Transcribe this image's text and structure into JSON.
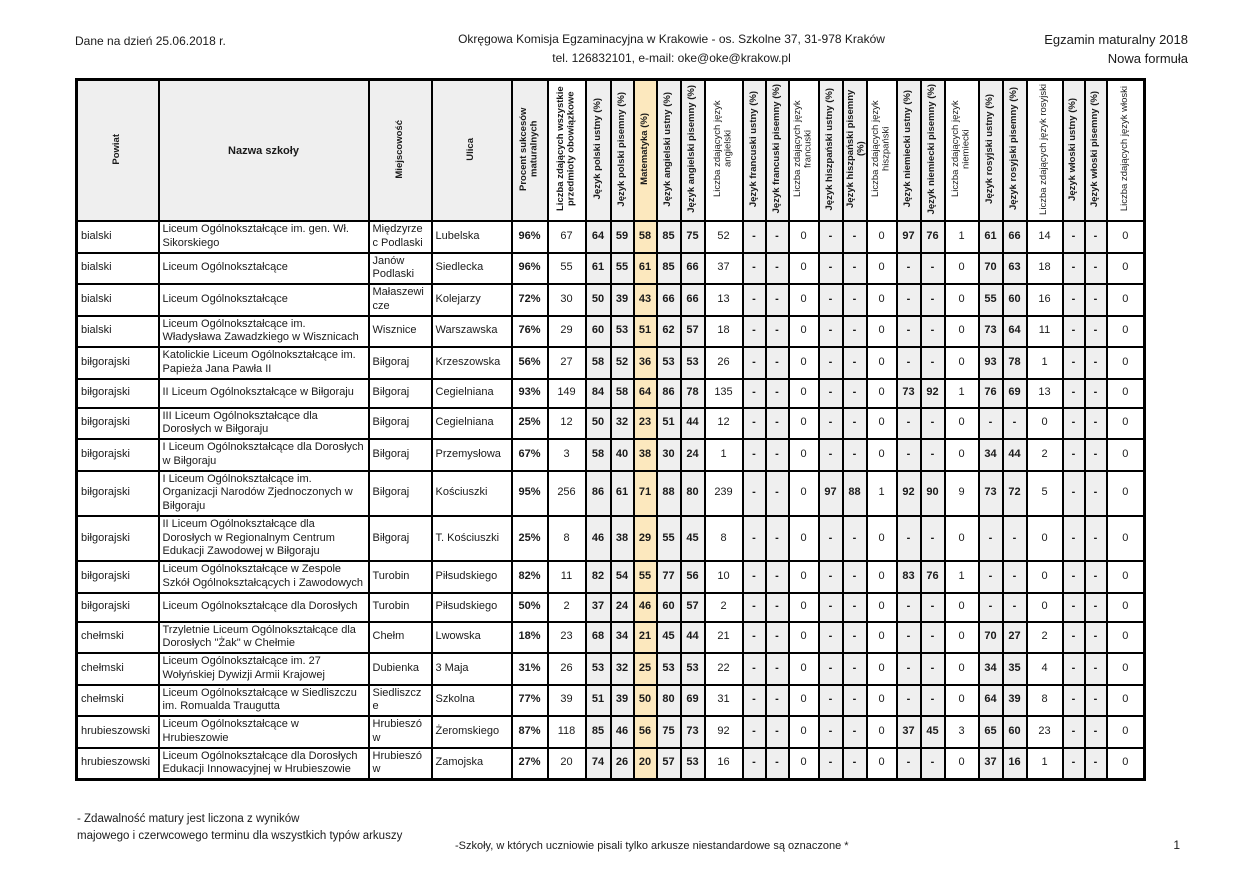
{
  "header": {
    "date_note": "Dane na dzień 25.06.2018 r.",
    "org_line1": "Okręgowa Komisja Egzaminacyjna w Krakowie - os. Szkolne 37, 31-978 Kraków",
    "org_line2": "tel. 126832101, e-mail: oke@oke@krakow.pl",
    "exam_line1": "Egzamin maturalny 2018",
    "exam_line2": "Nowa formuła"
  },
  "colors": {
    "shaded": "#efefef",
    "math_highlight": "#fce8be"
  },
  "table": {
    "columns": [
      {
        "key": "powiat",
        "label": "Powiat",
        "style": "text"
      },
      {
        "key": "nazwa_szkoly",
        "label": "Nazwa szkoły",
        "style": "text"
      },
      {
        "key": "miejscowosc",
        "label": "Miejscowość",
        "style": "text"
      },
      {
        "key": "ulica",
        "label": "Ulica",
        "style": "text"
      },
      {
        "key": "procent_sukcesow",
        "label": "Procent sukcesów maturalnych",
        "style": "pct"
      },
      {
        "key": "liczba_wszystkie",
        "label": "Liczba zdających wszystkie przedmioty obowiązkowe",
        "style": "num",
        "bold_header": true
      },
      {
        "key": "polski_ustny",
        "label": "Język polski ustny (%)",
        "style": "lang"
      },
      {
        "key": "polski_pisemny",
        "label": "Język polski pisemny (%)",
        "style": "lang"
      },
      {
        "key": "matematyka",
        "label": "Matematyka (%)",
        "style": "math"
      },
      {
        "key": "angielski_ustny",
        "label": "Język angielski ustny (%)",
        "style": "lang"
      },
      {
        "key": "angielski_pisemny",
        "label": "Język angielski pisemny (%)",
        "style": "lang"
      },
      {
        "key": "liczba_angielski",
        "label": "Liczba zdających język angielski",
        "style": "num"
      },
      {
        "key": "francuski_ustny",
        "label": "Język francuski ustny (%)",
        "style": "lang"
      },
      {
        "key": "francuski_pisemny",
        "label": "Język francuski pisemny (%)",
        "style": "lang"
      },
      {
        "key": "liczba_francuski",
        "label": "Liczba zdających język francuski",
        "style": "num"
      },
      {
        "key": "hiszpanski_ustny",
        "label": "Język hiszpański ustny (%)",
        "style": "lang"
      },
      {
        "key": "hiszpanski_pisemny",
        "label": "Język hiszpański pisemny (%)",
        "style": "lang"
      },
      {
        "key": "liczba_hiszpanski",
        "label": "Liczba zdających język hiszpański",
        "style": "num"
      },
      {
        "key": "niemiecki_ustny",
        "label": "Język niemiecki ustny (%)",
        "style": "lang"
      },
      {
        "key": "niemiecki_pisemny",
        "label": "Język niemiecki pisemny (%)",
        "style": "lang"
      },
      {
        "key": "liczba_niemiecki",
        "label": "Liczba zdających język niemiecki",
        "style": "num"
      },
      {
        "key": "rosyjski_ustny",
        "label": "Język rosyjski ustny (%)",
        "style": "lang"
      },
      {
        "key": "rosyjski_pisemny",
        "label": "Język rosyjski pisemny (%)",
        "style": "lang"
      },
      {
        "key": "liczba_rosyjski",
        "label": "Liczba zdających język rosyjski",
        "style": "num"
      },
      {
        "key": "wloski_ustny",
        "label": "Język włoski ustny (%)",
        "style": "lang"
      },
      {
        "key": "wloski_pisemny",
        "label": "Język włoski pisemny (%)",
        "style": "lang"
      },
      {
        "key": "liczba_wloski",
        "label": "Liczba zdających język włoski",
        "style": "num"
      }
    ],
    "rows": [
      [
        "bialski",
        "Liceum Ogólnokształcące im. gen. Wł. Sikorskiego",
        "Międzyrzec Podlaski",
        "Lubelska",
        "96%",
        "67",
        "64",
        "59",
        "58",
        "85",
        "75",
        "52",
        "-",
        "-",
        "0",
        "-",
        "-",
        "0",
        "97",
        "76",
        "1",
        "61",
        "66",
        "14",
        "-",
        "-",
        "0"
      ],
      [
        "bialski",
        "Liceum Ogólnokształcące",
        "Janów Podlaski",
        "Siedlecka",
        "96%",
        "55",
        "61",
        "55",
        "61",
        "85",
        "66",
        "37",
        "-",
        "-",
        "0",
        "-",
        "-",
        "0",
        "-",
        "-",
        "0",
        "70",
        "63",
        "18",
        "-",
        "-",
        "0"
      ],
      [
        "bialski",
        "Liceum Ogólnokształcące",
        "Małaszewicze",
        "Kolejarzy",
        "72%",
        "30",
        "50",
        "39",
        "43",
        "66",
        "66",
        "13",
        "-",
        "-",
        "0",
        "-",
        "-",
        "0",
        "-",
        "-",
        "0",
        "55",
        "60",
        "16",
        "-",
        "-",
        "0"
      ],
      [
        "bialski",
        "Liceum Ogólnokształcące im. Władysława Zawadzkiego w Wisznicach",
        "Wisznice",
        "Warszawska",
        "76%",
        "29",
        "60",
        "53",
        "51",
        "62",
        "57",
        "18",
        "-",
        "-",
        "0",
        "-",
        "-",
        "0",
        "-",
        "-",
        "0",
        "73",
        "64",
        "11",
        "-",
        "-",
        "0"
      ],
      [
        "biłgorajski",
        "Katolickie Liceum Ogólnokształcące im. Papieża Jana Pawła II",
        "Biłgoraj",
        "Krzeszowska",
        "56%",
        "27",
        "58",
        "52",
        "36",
        "53",
        "53",
        "26",
        "-",
        "-",
        "0",
        "-",
        "-",
        "0",
        "-",
        "-",
        "0",
        "93",
        "78",
        "1",
        "-",
        "-",
        "0"
      ],
      [
        "biłgorajski",
        "II Liceum Ogólnokształcące w Biłgoraju",
        "Biłgoraj",
        "Cegielniana",
        "93%",
        "149",
        "84",
        "58",
        "64",
        "86",
        "78",
        "135",
        "-",
        "-",
        "0",
        "-",
        "-",
        "0",
        "73",
        "92",
        "1",
        "76",
        "69",
        "13",
        "-",
        "-",
        "0"
      ],
      [
        "biłgorajski",
        "III Liceum Ogólnokształcące dla Dorosłych w Biłgoraju",
        "Biłgoraj",
        "Cegielniana",
        "25%",
        "12",
        "50",
        "32",
        "23",
        "51",
        "44",
        "12",
        "-",
        "-",
        "0",
        "-",
        "-",
        "0",
        "-",
        "-",
        "0",
        "-",
        "-",
        "0",
        "-",
        "-",
        "0"
      ],
      [
        "biłgorajski",
        "I Liceum Ogólnokształcące dla Dorosłych w Biłgoraju",
        "Biłgoraj",
        "Przemysłowa",
        "67%",
        "3",
        "58",
        "40",
        "38",
        "30",
        "24",
        "1",
        "-",
        "-",
        "0",
        "-",
        "-",
        "0",
        "-",
        "-",
        "0",
        "34",
        "44",
        "2",
        "-",
        "-",
        "0"
      ],
      [
        "biłgorajski",
        "I Liceum Ogólnokształcące im. Organizacji Narodów Zjednoczonych w Biłgoraju",
        "Biłgoraj",
        "Kościuszki",
        "95%",
        "256",
        "86",
        "61",
        "71",
        "88",
        "80",
        "239",
        "-",
        "-",
        "0",
        "97",
        "88",
        "1",
        "92",
        "90",
        "9",
        "73",
        "72",
        "5",
        "-",
        "-",
        "0"
      ],
      [
        "biłgorajski",
        "II Liceum Ogólnokształcące dla Dorosłych w Regionalnym Centrum Edukacji Zawodowej w Biłgoraju",
        "Biłgoraj",
        "T. Kościuszki",
        "25%",
        "8",
        "46",
        "38",
        "29",
        "55",
        "45",
        "8",
        "-",
        "-",
        "0",
        "-",
        "-",
        "0",
        "-",
        "-",
        "0",
        "-",
        "-",
        "0",
        "-",
        "-",
        "0"
      ],
      [
        "biłgorajski",
        "Liceum Ogólnokształcące w Zespole Szkół Ogólnokształcących i Zawodowych",
        "Turobin",
        "Piłsudskiego",
        "82%",
        "11",
        "82",
        "54",
        "55",
        "77",
        "56",
        "10",
        "-",
        "-",
        "0",
        "-",
        "-",
        "0",
        "83",
        "76",
        "1",
        "-",
        "-",
        "0",
        "-",
        "-",
        "0"
      ],
      [
        "biłgorajski",
        "Liceum Ogólnokształcące dla Dorosłych",
        "Turobin",
        "Piłsudskiego",
        "50%",
        "2",
        "37",
        "24",
        "46",
        "60",
        "57",
        "2",
        "-",
        "-",
        "0",
        "-",
        "-",
        "0",
        "-",
        "-",
        "0",
        "-",
        "-",
        "0",
        "-",
        "-",
        "0"
      ],
      [
        "chełmski",
        "Trzyletnie Liceum Ogólnokształcące dla Dorosłych \"Żak\" w Chełmie",
        "Chełm",
        "Lwowska",
        "18%",
        "23",
        "68",
        "34",
        "21",
        "45",
        "44",
        "21",
        "-",
        "-",
        "0",
        "-",
        "-",
        "0",
        "-",
        "-",
        "0",
        "70",
        "27",
        "2",
        "-",
        "-",
        "0"
      ],
      [
        "chełmski",
        "Liceum Ogólnokształcące im. 27 Wołyńskiej Dywizji Armii Krajowej",
        "Dubienka",
        "3 Maja",
        "31%",
        "26",
        "53",
        "32",
        "25",
        "53",
        "53",
        "22",
        "-",
        "-",
        "0",
        "-",
        "-",
        "0",
        "-",
        "-",
        "0",
        "34",
        "35",
        "4",
        "-",
        "-",
        "0"
      ],
      [
        "chełmski",
        "Liceum Ogólnokształcące w Siedliszczu im. Romualda Traugutta",
        "Siedliszcze",
        "Szkolna",
        "77%",
        "39",
        "51",
        "39",
        "50",
        "80",
        "69",
        "31",
        "-",
        "-",
        "0",
        "-",
        "-",
        "0",
        "-",
        "-",
        "0",
        "64",
        "39",
        "8",
        "-",
        "-",
        "0"
      ],
      [
        "hrubieszowski",
        "Liceum Ogólnokształcące w Hrubieszowie",
        "Hrubieszów",
        "Żeromskiego",
        "87%",
        "118",
        "85",
        "46",
        "56",
        "75",
        "73",
        "92",
        "-",
        "-",
        "0",
        "-",
        "-",
        "0",
        "37",
        "45",
        "3",
        "65",
        "60",
        "23",
        "-",
        "-",
        "0"
      ],
      [
        "hrubieszowski",
        "Liceum Ogólnokształcące dla Dorosłych Edukacji Innowacyjnej w Hrubieszowie",
        "Hrubieszów",
        "Zamojska",
        "27%",
        "20",
        "74",
        "26",
        "20",
        "57",
        "53",
        "16",
        "-",
        "-",
        "0",
        "-",
        "-",
        "0",
        "-",
        "-",
        "0",
        "37",
        "16",
        "1",
        "-",
        "-",
        "0"
      ]
    ]
  },
  "footer": {
    "note_line1": "- Zdawalność matury jest liczona z wyników",
    "note_line2": "majowego i czerwcowego terminu dla wszystkich typów arkuszy",
    "note_center": "-Szkoły, w których uczniowie pisali tylko arkusze niestandardowe są oznaczone *",
    "page_number": "1"
  }
}
